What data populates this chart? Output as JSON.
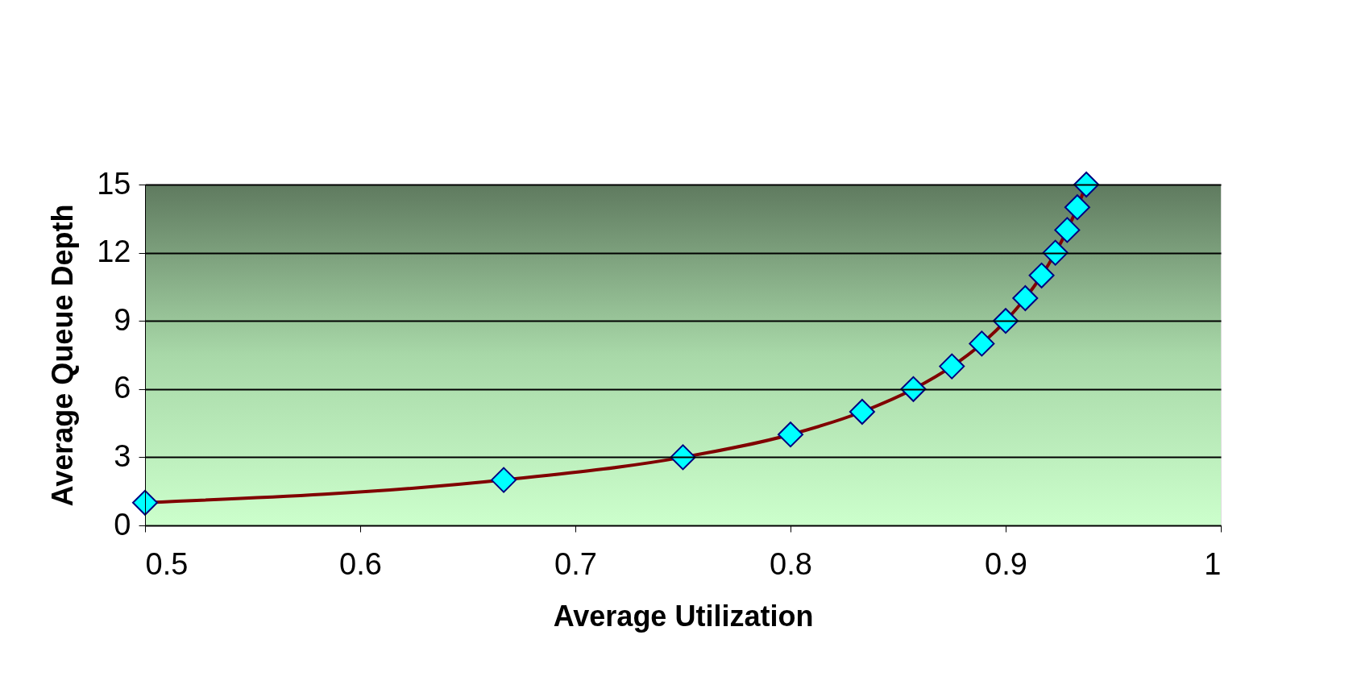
{
  "chart_data": {
    "type": "line",
    "xlabel": "Average Utilization",
    "ylabel": "Average Queue Depth",
    "x": [
      0.5,
      0.6667,
      0.75,
      0.8,
      0.8333,
      0.8571,
      0.875,
      0.8889,
      0.9,
      0.9091,
      0.9167,
      0.9231,
      0.9286,
      0.9333,
      0.9375
    ],
    "series": [
      {
        "color": "#800000",
        "values": [
          1,
          2,
          3,
          4,
          5,
          6,
          7,
          8,
          9,
          10,
          11,
          12,
          13,
          14,
          15
        ]
      }
    ],
    "xlim": [
      0.5,
      1
    ],
    "xticks": [
      0.5,
      0.6,
      0.7,
      0.8,
      0.9,
      1
    ],
    "ylim": [
      0,
      15
    ],
    "yticks": [
      0,
      3,
      6,
      9,
      12,
      15
    ],
    "grid": "y",
    "marker": "diamond",
    "line_style": "solid"
  }
}
